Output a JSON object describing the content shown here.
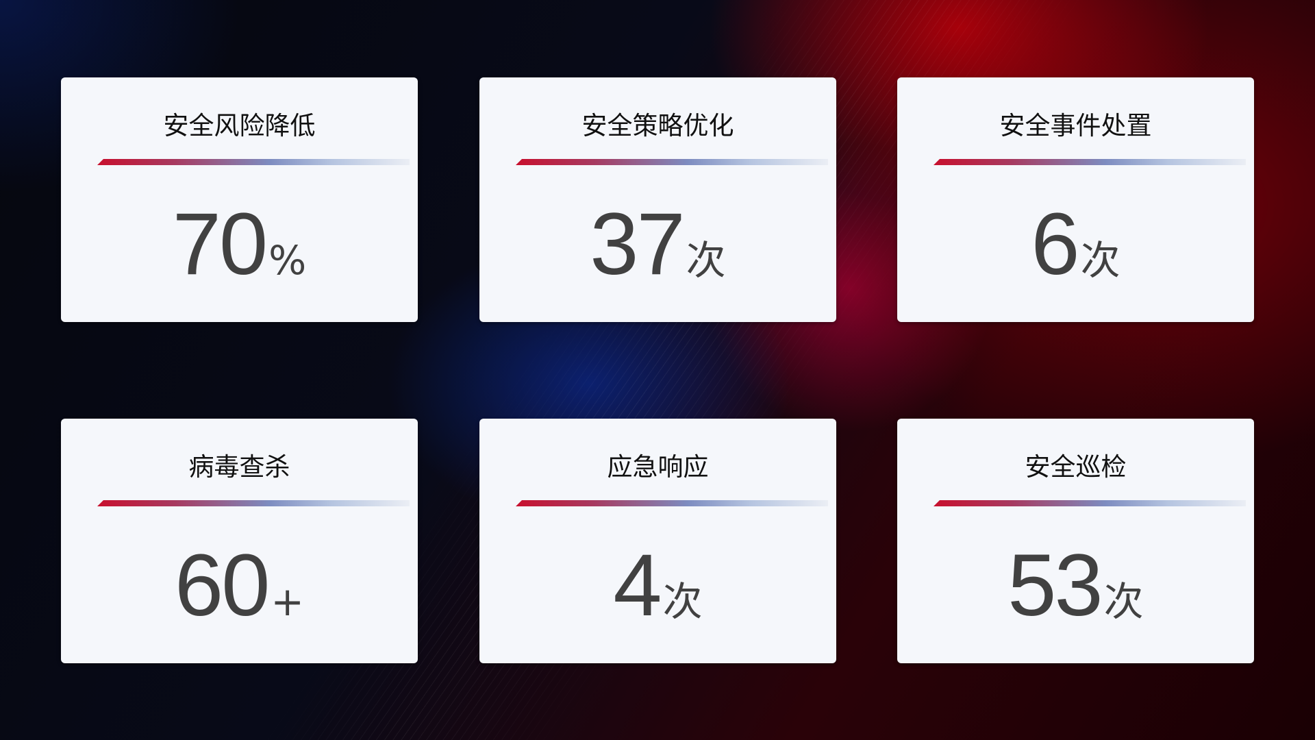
{
  "cards": [
    {
      "title": "安全风险降低",
      "value": "70",
      "unit": "%"
    },
    {
      "title": "安全策略优化",
      "value": "37",
      "unit": "次"
    },
    {
      "title": "安全事件处置",
      "value": "6",
      "unit": "次"
    },
    {
      "title": "病毒查杀",
      "value": "60",
      "unit": "+"
    },
    {
      "title": "应急响应",
      "value": "4",
      "unit": "次"
    },
    {
      "title": "安全巡检",
      "value": "53",
      "unit": "次"
    }
  ],
  "colors": {
    "accent_red": "#c8102e",
    "accent_blue": "#7d8cc0",
    "card_bg": "#f5f7fb",
    "value_text": "#414141"
  }
}
